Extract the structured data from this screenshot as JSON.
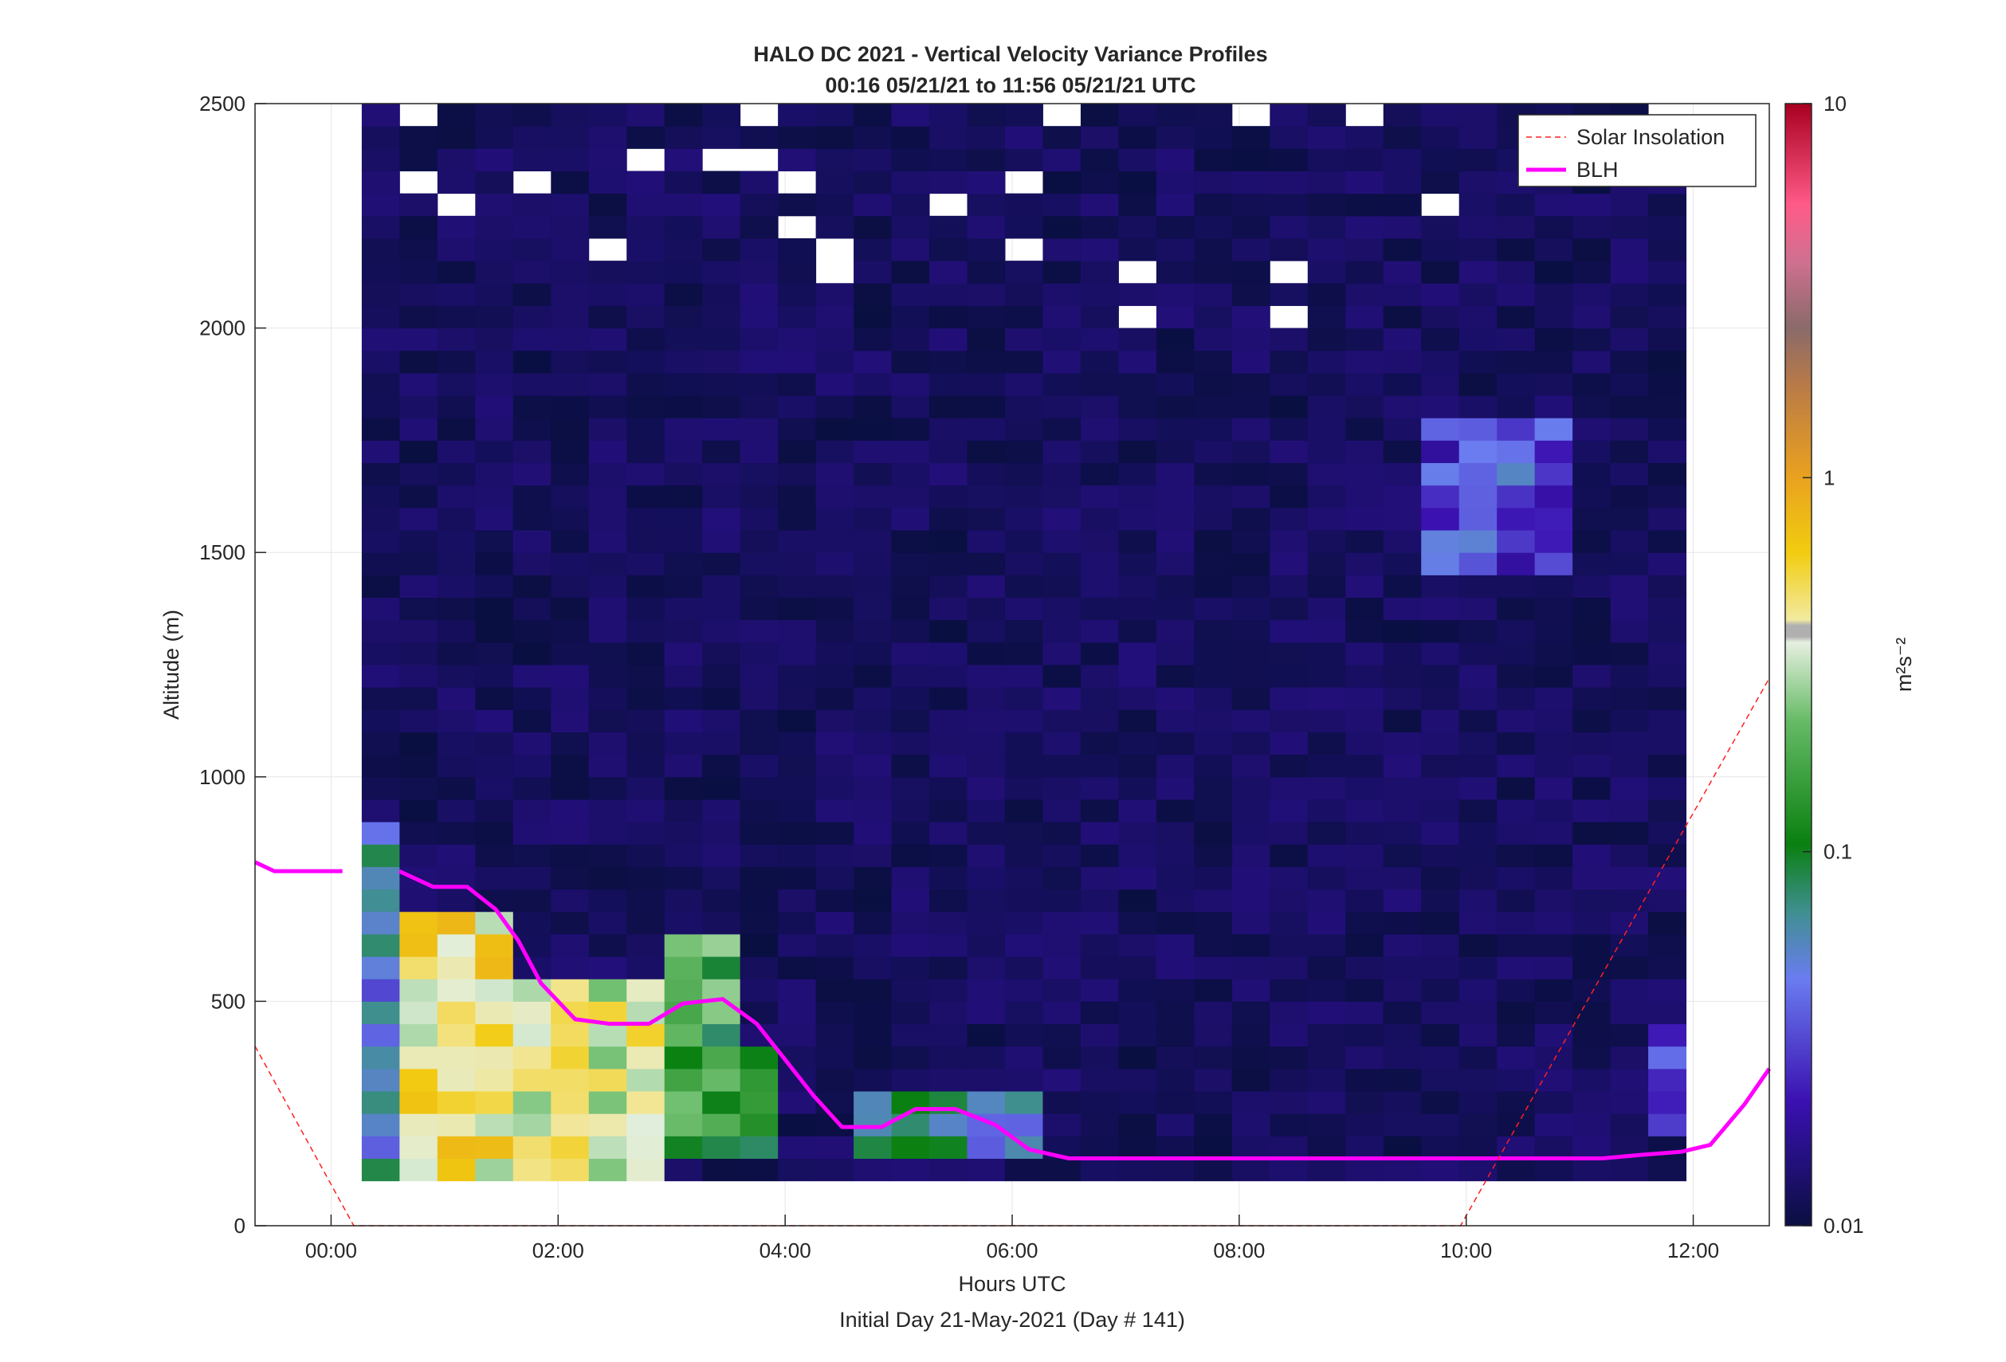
{
  "chart_data": {
    "type": "heatmap",
    "title": "HALO DC 2021 - Vertical Velocity Variance Profiles",
    "subtitle": "00:16 05/21/21 to 11:56 05/21/21  UTC",
    "xlabel": "Hours UTC",
    "xlabel2": "Initial Day 21-May-2021 (Day # 141)",
    "ylabel": "Altitude (m)",
    "x_ticks": [
      "00:00",
      "02:00",
      "04:00",
      "06:00",
      "08:00",
      "10:00",
      "12:00"
    ],
    "x_tick_hours": [
      0,
      2,
      4,
      6,
      8,
      10,
      12
    ],
    "xlim_hours": [
      -0.67,
      12.67
    ],
    "y_ticks": [
      "0",
      "500",
      "1000",
      "1500",
      "2000",
      "2500"
    ],
    "y_tick_values": [
      0,
      500,
      1000,
      1500,
      2000,
      2500
    ],
    "ylim": [
      0,
      2500
    ],
    "grid": true,
    "colorbar": {
      "label": "m²s⁻²",
      "scale": "log",
      "ticks": [
        "10",
        "1",
        "0.1",
        "0.01"
      ],
      "tick_values": [
        10,
        1,
        0.1,
        0.01
      ],
      "range": [
        0.01,
        10
      ]
    },
    "legend": {
      "placement": "top-right",
      "entries": [
        "Solar Insolation",
        "BLH"
      ]
    },
    "series": [
      {
        "name": "BLH",
        "color": "#ff00ff",
        "x_hours": [
          -0.67,
          -0.5,
          -0.17,
          0.1,
          null,
          0.6,
          0.9,
          1.2,
          1.45,
          1.65,
          1.85,
          2.15,
          2.45,
          2.8,
          3.1,
          3.45,
          3.75,
          4.0,
          4.25,
          4.5,
          4.85,
          5.15,
          5.5,
          5.85,
          6.15,
          6.5,
          7.0,
          8.0,
          9.0,
          10.0,
          11.2,
          11.55,
          11.9,
          12.15,
          12.45,
          12.67
        ],
        "y_m": [
          810,
          790,
          790,
          790,
          null,
          790,
          755,
          755,
          705,
          635,
          540,
          460,
          450,
          450,
          495,
          505,
          450,
          370,
          290,
          220,
          220,
          260,
          260,
          225,
          170,
          150,
          150,
          150,
          150,
          150,
          150,
          158,
          165,
          180,
          270,
          350
        ]
      },
      {
        "name": "Solar Insolation",
        "color": "#ff2020",
        "style": "dashed",
        "x_hours": [
          -0.67,
          0.2,
          9.95,
          12.67
        ],
        "y_m": [
          400,
          0,
          0,
          1220
        ]
      }
    ],
    "heatmap": {
      "bin_minutes": 20,
      "first_bin_start_hour": 0.27,
      "altitude_bin_m": 50,
      "note_values": "log10 of variance (m^2 s^-2); background cells ~0.01",
      "features": [
        {
          "hours": [
            0.27,
            0.6
          ],
          "alt_m": [
            100,
            900
          ],
          "log_value": -1.3
        },
        {
          "hours": [
            0.6,
            1.6
          ],
          "alt_m": [
            100,
            700
          ],
          "log_value": -0.4
        },
        {
          "hours": [
            1.6,
            2.9
          ],
          "alt_m": [
            100,
            550
          ],
          "log_value": -0.5
        },
        {
          "hours": [
            2.9,
            3.6
          ],
          "alt_m": [
            150,
            650
          ],
          "log_value": -0.9
        },
        {
          "hours": [
            3.6,
            4.0
          ],
          "alt_m": [
            150,
            400
          ],
          "log_value": -1.1
        },
        {
          "hours": [
            4.6,
            6.2
          ],
          "alt_m": [
            150,
            300
          ],
          "log_value": -1.2
        },
        {
          "hours": [
            9.6,
            11.0
          ],
          "alt_m": [
            1450,
            1800
          ],
          "log_value": -1.5
        },
        {
          "hours": [
            11.6,
            11.95
          ],
          "alt_m": [
            200,
            450
          ],
          "log_value": -1.5
        }
      ]
    }
  }
}
